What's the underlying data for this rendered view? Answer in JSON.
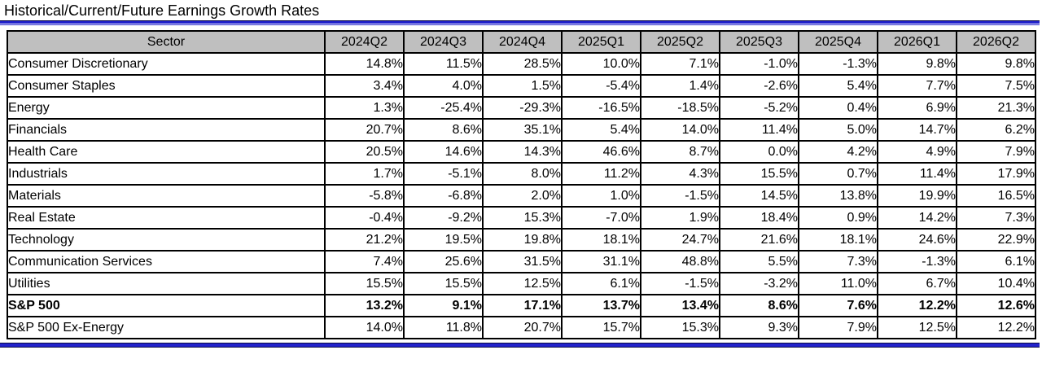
{
  "title": "Historical/Current/Future Earnings Growth Rates",
  "colors": {
    "rule_blue": "#2222cc",
    "header_bg": "#bfbfbf",
    "table_border": "#000000"
  },
  "chart_data": {
    "type": "table",
    "title": "Historical/Current/Future Earnings Growth Rates",
    "sector_column_header": "Sector",
    "columns": [
      "2024Q2",
      "2024Q3",
      "2024Q4",
      "2025Q1",
      "2025Q2",
      "2025Q3",
      "2025Q4",
      "2026Q1",
      "2026Q2"
    ],
    "rows": [
      {
        "sector": "Consumer Discretionary",
        "bold": false,
        "values": [
          "14.8%",
          "11.5%",
          "28.5%",
          "10.0%",
          "7.1%",
          "-1.0%",
          "-1.3%",
          "9.8%",
          "9.8%"
        ]
      },
      {
        "sector": "Consumer Staples",
        "bold": false,
        "values": [
          "3.4%",
          "4.0%",
          "1.5%",
          "-5.4%",
          "1.4%",
          "-2.6%",
          "5.4%",
          "7.7%",
          "7.5%"
        ]
      },
      {
        "sector": "Energy",
        "bold": false,
        "values": [
          "1.3%",
          "-25.4%",
          "-29.3%",
          "-16.5%",
          "-18.5%",
          "-5.2%",
          "0.4%",
          "6.9%",
          "21.3%"
        ]
      },
      {
        "sector": "Financials",
        "bold": false,
        "values": [
          "20.7%",
          "8.6%",
          "35.1%",
          "5.4%",
          "14.0%",
          "11.4%",
          "5.0%",
          "14.7%",
          "6.2%"
        ]
      },
      {
        "sector": "Health Care",
        "bold": false,
        "values": [
          "20.5%",
          "14.6%",
          "14.3%",
          "46.6%",
          "8.7%",
          "0.0%",
          "4.2%",
          "4.9%",
          "7.9%"
        ]
      },
      {
        "sector": "Industrials",
        "bold": false,
        "values": [
          "1.7%",
          "-5.1%",
          "8.0%",
          "11.2%",
          "4.3%",
          "15.5%",
          "0.7%",
          "11.4%",
          "17.9%"
        ]
      },
      {
        "sector": "Materials",
        "bold": false,
        "values": [
          "-5.8%",
          "-6.8%",
          "2.0%",
          "1.0%",
          "-1.5%",
          "14.5%",
          "13.8%",
          "19.9%",
          "16.5%"
        ]
      },
      {
        "sector": "Real Estate",
        "bold": false,
        "values": [
          "-0.4%",
          "-9.2%",
          "15.3%",
          "-7.0%",
          "1.9%",
          "18.4%",
          "0.9%",
          "14.2%",
          "7.3%"
        ]
      },
      {
        "sector": "Technology",
        "bold": false,
        "values": [
          "21.2%",
          "19.5%",
          "19.8%",
          "18.1%",
          "24.7%",
          "21.6%",
          "18.1%",
          "24.6%",
          "22.9%"
        ]
      },
      {
        "sector": "Communication Services",
        "bold": false,
        "values": [
          "7.4%",
          "25.6%",
          "31.5%",
          "31.1%",
          "48.8%",
          "5.5%",
          "7.3%",
          "-1.3%",
          "6.1%"
        ]
      },
      {
        "sector": "Utilities",
        "bold": false,
        "values": [
          "15.5%",
          "15.5%",
          "12.5%",
          "6.1%",
          "-1.5%",
          "-3.2%",
          "11.0%",
          "6.7%",
          "10.4%"
        ]
      },
      {
        "sector": "S&P 500",
        "bold": true,
        "values": [
          "13.2%",
          "9.1%",
          "17.1%",
          "13.7%",
          "13.4%",
          "8.6%",
          "7.6%",
          "12.2%",
          "12.6%"
        ]
      },
      {
        "sector": "S&P 500 Ex-Energy",
        "bold": false,
        "values": [
          "14.0%",
          "11.8%",
          "20.7%",
          "15.7%",
          "15.3%",
          "9.3%",
          "7.9%",
          "12.5%",
          "12.2%"
        ]
      }
    ]
  }
}
